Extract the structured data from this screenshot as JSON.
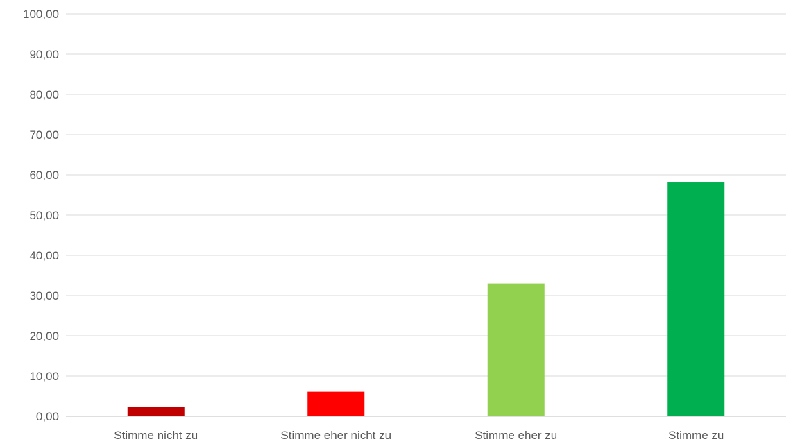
{
  "chart_data": {
    "type": "bar",
    "categories": [
      "Stimme nicht zu",
      "Stimme eher nicht zu",
      "Stimme eher zu",
      "Stimme zu"
    ],
    "values": [
      2.4,
      6.1,
      33.0,
      58.1
    ],
    "colors": [
      "#c00000",
      "#ff0000",
      "#92d050",
      "#00b050"
    ],
    "y_tick_labels": [
      "0,00",
      "10,00",
      "20,00",
      "30,00",
      "40,00",
      "50,00",
      "60,00",
      "70,00",
      "80,00",
      "90,00",
      "100,00"
    ],
    "ylim": [
      0,
      100
    ],
    "title": "",
    "xlabel": "",
    "ylabel": "",
    "grid": true,
    "legend": "none"
  }
}
